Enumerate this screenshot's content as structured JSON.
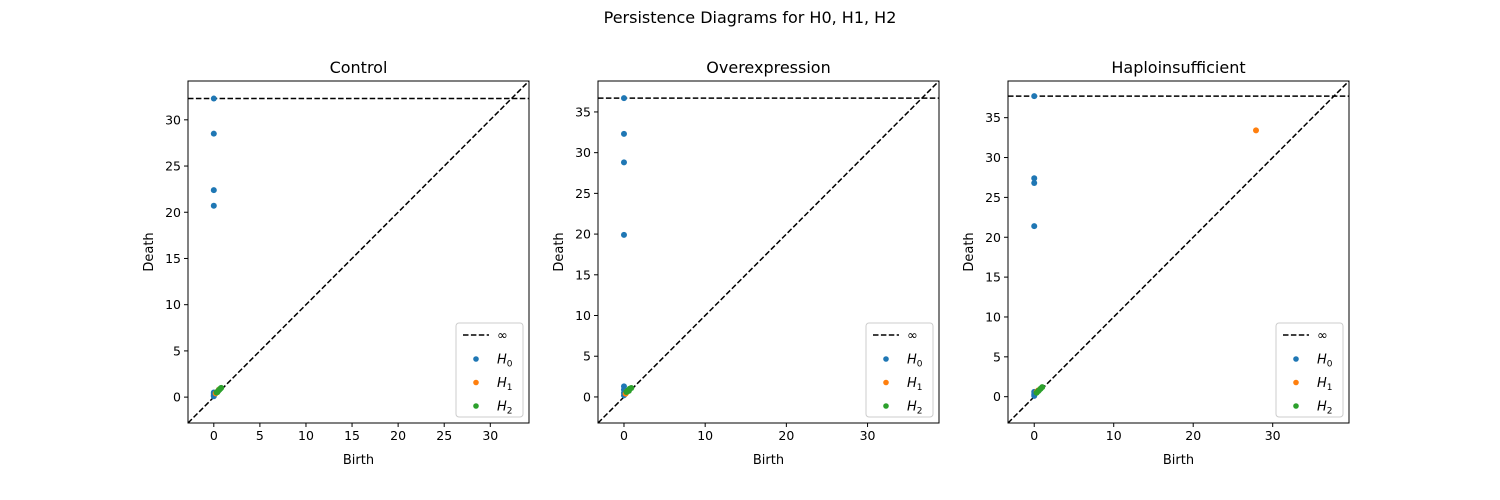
{
  "figure": {
    "suptitle": "Persistence Diagrams for H0, H1, H2"
  },
  "legend_labels": {
    "infinity": "∞",
    "h0": {
      "main": "H",
      "sub": "0"
    },
    "h1": {
      "main": "H",
      "sub": "1"
    },
    "h2": {
      "main": "H",
      "sub": "2"
    }
  },
  "colors": {
    "h0": "#1f77b4",
    "h1": "#ff7f0e",
    "h2": "#2ca02c",
    "reference_lines": "#000000"
  },
  "chart_data": [
    {
      "type": "scatter",
      "title": "Control",
      "xlabel": "Birth",
      "ylabel": "Death",
      "xlim": [
        -2.8,
        34.2
      ],
      "ylim": [
        -2.8,
        34.2
      ],
      "xticks": [
        0,
        5,
        10,
        15,
        20,
        25,
        30
      ],
      "yticks": [
        0,
        5,
        10,
        15,
        20,
        25,
        30
      ],
      "infinity_line": 32.3,
      "diagonal": true,
      "legend_position": "lower right",
      "series": [
        {
          "name": "H0",
          "color": "#1f77b4",
          "points": [
            [
              0,
              32.3
            ],
            [
              0,
              28.5
            ],
            [
              0,
              22.4
            ],
            [
              0,
              20.7
            ],
            [
              0,
              0.5
            ],
            [
              0,
              0.35
            ],
            [
              0,
              0.2
            ],
            [
              0,
              0.1
            ]
          ]
        },
        {
          "name": "H1",
          "color": "#ff7f0e",
          "points": [
            [
              0.2,
              0.4
            ],
            [
              0.4,
              0.6
            ],
            [
              0.55,
              0.8
            ],
            [
              0.3,
              0.5
            ]
          ]
        },
        {
          "name": "H2",
          "color": "#2ca02c",
          "points": [
            [
              0.3,
              0.5
            ],
            [
              0.5,
              0.7
            ],
            [
              0.7,
              0.9
            ],
            [
              0.8,
              1.0
            ],
            [
              0.6,
              0.8
            ],
            [
              0.4,
              0.55
            ]
          ]
        }
      ]
    },
    {
      "type": "scatter",
      "title": "Overexpression",
      "xlabel": "Birth",
      "ylabel": "Death",
      "xlim": [
        -3.2,
        38.8
      ],
      "ylim": [
        -3.2,
        38.8
      ],
      "xticks": [
        0,
        10,
        20,
        30
      ],
      "yticks": [
        0,
        5,
        10,
        15,
        20,
        25,
        30,
        35
      ],
      "infinity_line": 36.7,
      "diagonal": true,
      "legend_position": "lower right",
      "series": [
        {
          "name": "H0",
          "color": "#1f77b4",
          "points": [
            [
              0,
              36.7
            ],
            [
              0,
              32.3
            ],
            [
              0,
              28.8
            ],
            [
              0,
              19.9
            ],
            [
              0,
              1.3
            ],
            [
              0,
              0.9
            ],
            [
              0,
              0.5
            ],
            [
              0,
              0.2
            ]
          ]
        },
        {
          "name": "H1",
          "color": "#ff7f0e",
          "points": [
            [
              0.2,
              0.4
            ],
            [
              0.4,
              0.7
            ],
            [
              0.6,
              0.8
            ],
            [
              0.3,
              0.55
            ]
          ]
        },
        {
          "name": "H2",
          "color": "#2ca02c",
          "points": [
            [
              0.3,
              0.6
            ],
            [
              0.5,
              0.8
            ],
            [
              0.7,
              1.0
            ],
            [
              0.9,
              1.1
            ],
            [
              0.6,
              0.75
            ]
          ]
        }
      ]
    },
    {
      "type": "scatter",
      "title": "Haploinsufficient",
      "xlabel": "Birth",
      "ylabel": "Death",
      "xlim": [
        -3.3,
        39.6
      ],
      "ylim": [
        -3.3,
        39.6
      ],
      "xticks": [
        0,
        10,
        20,
        30
      ],
      "yticks": [
        0,
        5,
        10,
        15,
        20,
        25,
        30,
        35
      ],
      "infinity_line": 37.7,
      "diagonal": true,
      "legend_position": "lower right",
      "series": [
        {
          "name": "H0",
          "color": "#1f77b4",
          "points": [
            [
              0,
              37.7
            ],
            [
              0,
              27.4
            ],
            [
              0,
              26.8
            ],
            [
              0,
              21.4
            ],
            [
              0,
              0.6
            ],
            [
              0,
              0.3
            ],
            [
              0,
              0.1
            ]
          ]
        },
        {
          "name": "H1",
          "color": "#ff7f0e",
          "points": [
            [
              27.9,
              33.4
            ],
            [
              0.3,
              0.6
            ],
            [
              0.5,
              0.8
            ]
          ]
        },
        {
          "name": "H2",
          "color": "#2ca02c",
          "points": [
            [
              0.3,
              0.5
            ],
            [
              0.6,
              0.8
            ],
            [
              0.8,
              1.0
            ],
            [
              1.0,
              1.2
            ],
            [
              0.5,
              0.7
            ]
          ]
        }
      ]
    }
  ]
}
